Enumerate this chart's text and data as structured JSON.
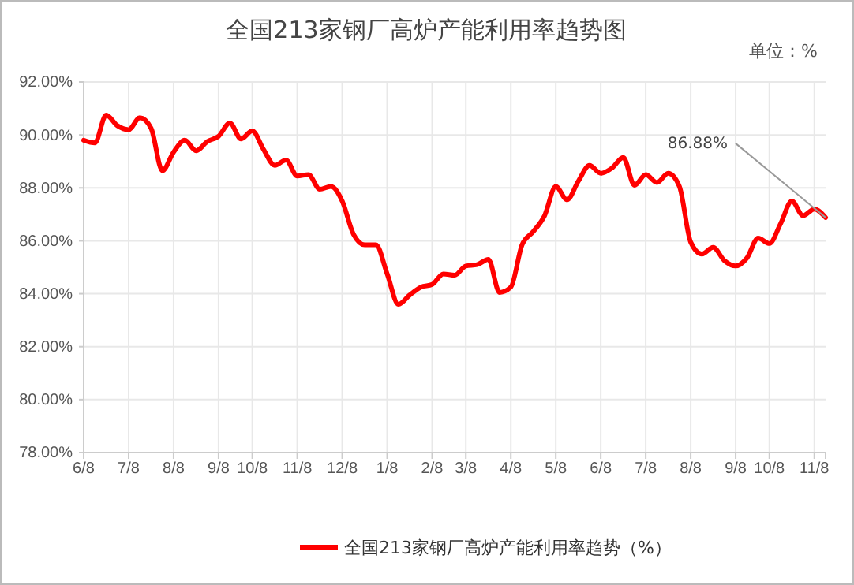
{
  "chart_data": {
    "type": "line",
    "title": "全国213家钢厂高炉产能利用率趋势图",
    "annotations": [
      "单位：%"
    ],
    "categories": [
      "6/8",
      null,
      null,
      null,
      "7/8",
      null,
      null,
      null,
      "8/8",
      null,
      null,
      null,
      "9/8",
      null,
      null,
      "10/8",
      null,
      null,
      null,
      "11/8",
      null,
      null,
      null,
      "12/8",
      null,
      null,
      null,
      "1/8",
      null,
      null,
      null,
      "2/8",
      null,
      null,
      "3/8",
      null,
      null,
      null,
      "4/8",
      null,
      null,
      null,
      "5/8",
      null,
      null,
      null,
      "6/8",
      null,
      null,
      null,
      "7/8",
      null,
      null,
      null,
      "8/8",
      null,
      null,
      null,
      "9/8",
      null,
      null,
      "10/8",
      null,
      null,
      null,
      "11/8",
      null
    ],
    "series": [
      {
        "name": "全国213家钢厂高炉产能利用率趋势（%）",
        "color": "#ff0000",
        "values": [
          89.8,
          89.7,
          90.75,
          90.35,
          90.2,
          90.65,
          90.25,
          88.65,
          89.35,
          89.8,
          89.4,
          89.75,
          89.95,
          90.45,
          89.85,
          90.15,
          89.45,
          88.85,
          89.05,
          88.45,
          88.5,
          87.95,
          88.05,
          87.5,
          86.25,
          85.85,
          85.85,
          84.75,
          83.6,
          83.95,
          84.25,
          84.35,
          84.75,
          84.7,
          85.05,
          85.1,
          85.3,
          84.05,
          84.25,
          85.85,
          86.35,
          86.95,
          88.05,
          87.55,
          88.25,
          88.85,
          88.55,
          88.75,
          89.15,
          88.1,
          88.5,
          88.2,
          88.55,
          88.05,
          85.95,
          85.5,
          85.75,
          85.25,
          85.05,
          85.35,
          86.1,
          85.9,
          86.65,
          87.5,
          86.95,
          87.2,
          86.88
        ],
        "value_labels": [
          null,
          null,
          null,
          null,
          null,
          null,
          null,
          null,
          null,
          null,
          null,
          null,
          null,
          null,
          null,
          null,
          null,
          null,
          null,
          null,
          null,
          null,
          null,
          null,
          null,
          null,
          null,
          null,
          null,
          null,
          null,
          null,
          null,
          null,
          null,
          null,
          null,
          null,
          null,
          null,
          null,
          null,
          null,
          null,
          null,
          null,
          null,
          null,
          null,
          null,
          null,
          null,
          null,
          null,
          null,
          null,
          null,
          null,
          null,
          null,
          null,
          null,
          null,
          null,
          null,
          null,
          "86.88%"
        ]
      }
    ],
    "ylim": [
      78,
      92
    ],
    "yticks": [
      {
        "value": 78,
        "label": "78.00%"
      },
      {
        "value": 80,
        "label": "80.00%"
      },
      {
        "value": 82,
        "label": "82.00%"
      },
      {
        "value": 84,
        "label": "84.00%"
      },
      {
        "value": 86,
        "label": "86.00%"
      },
      {
        "value": 88,
        "label": "88.00%"
      },
      {
        "value": 90,
        "label": "90.00%"
      },
      {
        "value": 92,
        "label": "92.00%"
      }
    ],
    "grid": true,
    "legend": "bottom",
    "marker": "none",
    "line_style": "solid"
  }
}
